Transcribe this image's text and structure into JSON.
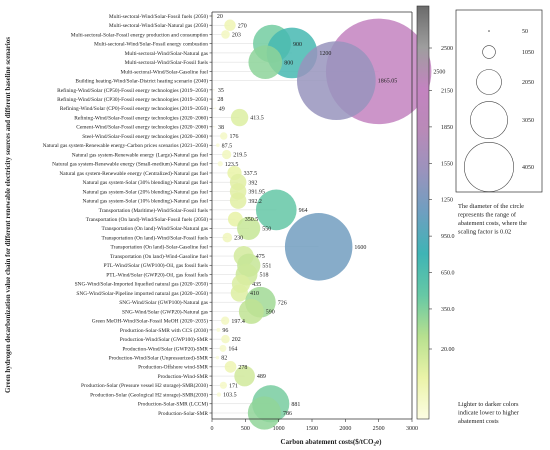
{
  "chart_data": {
    "type": "scatter",
    "subtype": "bubble",
    "xlabel": "Carbon abatement costs($/tCO",
    "xlabel_sub": "2",
    "xlabel_tail": "e)",
    "ylabel": "Green hydrogen decarbonization value chain for different renewable electricity sources and different baseline scenarios",
    "xlim": [
      0,
      3000
    ],
    "xticks": [
      0,
      500,
      1000,
      1500,
      2000,
      2500,
      3000
    ],
    "grid": false,
    "categories": [
      "Multi-sectoral-Wind/Solar-Fossil fuels (2050)",
      "Multi-sectoral-Wind/Solar-Natural gas (2050)",
      "Multi-sectoral-Solar-Fossil energy production and consumption",
      "Multi-sectoral-Wind/Solar-Fossil energy combustion",
      "Multi-sectoral-Wind/Solar-Natural gas",
      "Multi-sectoral-Wind/Solar-Fossil fuels",
      "Multi-sectoral-Wind/Solar-Gasoline fuel",
      "Building heating-Wind/Solar-District heating scenario (2040)",
      "Refining-Wind/Solar (CP50)-Fossil energy technologies (2019~2050)",
      "Refining-Wind/Solar (CP30)-Fossil energy technologies (2019~2050)",
      "Refining-Wind/Solar (CP0)-Fossil energy technologies (2019~2050)",
      "Refining-Wind/Solar-Fossil energy technologies (2020~2060)",
      "Cement-Wind/Solar-Fossil energy technologies (2020~2060)",
      "Steel-Wind/Solar-Fossil energy technologies (2020~2060)",
      "Natural gas system-Renewable energy-Carbon prices scenarios (2021~2050)",
      "Natural gas system-Renewable energy (Large)-Natural gas fuel",
      "Natural gas system-Renewable energy (Small-medium)-Natural gas fuel",
      "Natural gas system-Renewable energy (Centralized)-Natural gas fuel",
      "Natural gas system-Solar (30% blending)-Natural gas fuel",
      "Natural gas system-Solar (20% blending)-Natural gas fuel",
      "Natural gas system-Solar (10% blending)-Natural gas fuel",
      "Transportation (Maritime)-Wind/Solar-Fossil fuels",
      "Transportation (On land)-Wind/Solar-Fossil fuels (2050)",
      "Transportation (On land)-Wind/Solar-Natural gas",
      "Transportation (On land)-Wind/Solar-Fossil fuels",
      "Transportation (On land)-Solar-Gasoline fuel",
      "Transportation (On land)-Wind-Gasoline fuel",
      "PTL-Wind/Solar (GWP100)-Oil, gas fossil fuels",
      "PTL-Wind/Solar (GWP20)-Oil, gas fossil fuels",
      "SNG-Wind/Solar-Imported liquefied natural gas (2020~2050)",
      "SNG-Wind/Solar-Pipeline imported natural gas (2020~2050)",
      "SNG-Wind/Solar (GWP100)-Natural gas",
      "SNG-Wind/Solar (GWP20)-Natural gas",
      "Green MeOH-Wind/Solar-Fossil MeOH (2020~2035)",
      "Production-Solar-SMR with CCS (2030)",
      "Production-Wind/Solar (GWP100)-SMR",
      "Production-Wind/Solar (GWP20)-SMR",
      "Production-Wind/Solar (Unpressurized)-SMR",
      "Production-Offshore wind-SMR",
      "Production-Wind-SMR",
      "Production-Solar (Pressure vessel H2 storage)-SMR(2030)",
      "Production-Solar (Geological H2 storage)-SMR(2030)",
      "Production-Solar-SMR (LCCM)",
      "Production-Solar-SMR"
    ],
    "values": [
      20,
      270,
      203,
      900,
      1200,
      800,
      2500,
      1865.05,
      35,
      28,
      49,
      413.5,
      38,
      176,
      87.5,
      219.5,
      123.5,
      337.5,
      392,
      391.95,
      392.2,
      964,
      350.5,
      550,
      230,
      1600,
      475,
      551,
      518,
      435,
      410,
      726,
      590,
      197.4,
      96,
      202,
      164,
      82,
      278,
      489,
      171,
      103.5,
      881,
      786
    ],
    "value_labels": [
      "20",
      "270",
      "203",
      "900",
      "1200",
      "800",
      "2500",
      "1865.05",
      "35",
      "28",
      "49",
      "413.5",
      "38",
      "176",
      "87.5",
      "219.5",
      "123.5",
      "337.5",
      "392",
      "391.95",
      "392.2",
      "964",
      "350.5",
      "550",
      "230",
      "1600",
      "475",
      "551",
      "518",
      "435",
      "410",
      "726",
      "590",
      "197.4",
      "96",
      "202",
      "164",
      "82",
      "278",
      "489",
      "171",
      "103.5",
      "881",
      "786"
    ],
    "colorbar": {
      "ticks": [
        20.0,
        350.0,
        650.0,
        950.0,
        1250,
        1550,
        1850,
        2150,
        2500
      ],
      "tick_labels": [
        "20.00",
        "350.0",
        "650.0",
        "950.0",
        "1250",
        "1550",
        "1850",
        "2150",
        "2500"
      ],
      "colors": [
        "#fdfde3",
        "#eaf3a8",
        "#b7e08f",
        "#66c8a5",
        "#3fb4b5",
        "#6e9fc0",
        "#9a93bd",
        "#b98ab8",
        "#c383c0",
        "#9e9e9e",
        "#6b6b6b"
      ]
    },
    "size_legend": {
      "values": [
        "50",
        "1050",
        "2050",
        "3050",
        "4050"
      ],
      "scaling_factor": "0.02"
    },
    "annotations": {
      "size_note": "The diameter of the circle represents the range of abatement costs, where the scaling factor is 0.02",
      "color_note": "Lighter to darker colors indicate lower to higher abatement costs"
    }
  }
}
